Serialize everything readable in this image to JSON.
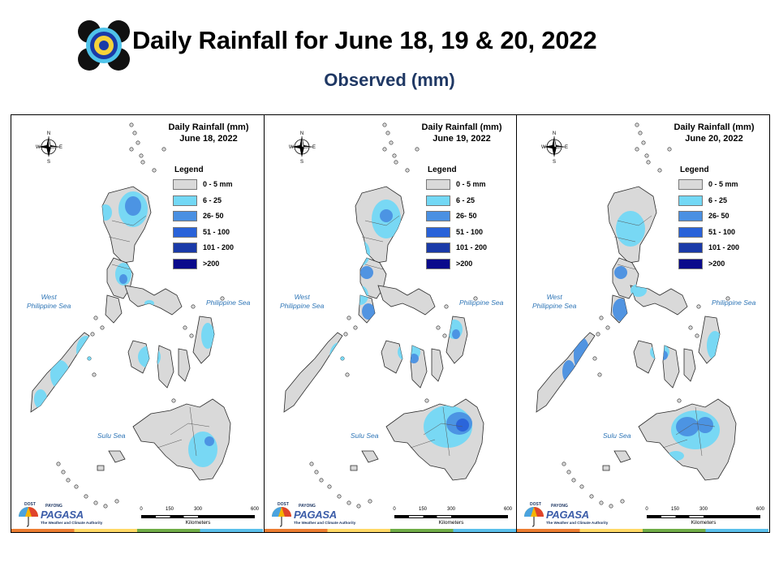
{
  "header": {
    "title": "Daily Rainfall for June 18, 19 & 20, 2022",
    "subtitle": "Observed (mm)",
    "logo_icon": "pagasa-seal-icon"
  },
  "map_title_prefix": "Daily Rainfall (mm)",
  "panels": [
    {
      "date": "June 18, 2022"
    },
    {
      "date": "June 19, 2022"
    },
    {
      "date": "June 20, 2022"
    }
  ],
  "legend": {
    "title": "Legend",
    "classes": [
      {
        "label": "0 - 5 mm",
        "color": "#d9d9d9"
      },
      {
        "label": "6 - 25",
        "color": "#73d8f5"
      },
      {
        "label": "26- 50",
        "color": "#4a90e2"
      },
      {
        "label": "51 - 100",
        "color": "#2962d9"
      },
      {
        "label": "101 - 200",
        "color": "#1a3aa8"
      },
      {
        "label": ">200",
        "color": "#0a0a8c"
      }
    ]
  },
  "seas": {
    "west_line1": "West",
    "west_line2": "Philippine Sea",
    "east": "Philippine Sea",
    "south": "Sulu Sea"
  },
  "compass": {
    "n": "N",
    "s": "S",
    "e": "E",
    "w": "W"
  },
  "scale": {
    "ticks": [
      "0",
      "150",
      "300",
      "600"
    ],
    "unit": "Kilometers"
  },
  "brand": {
    "dost": "DOST",
    "payong": "PAYONG",
    "name": "PAGASA",
    "tagline": "The Weather and Climate Authority"
  },
  "colors": {
    "land": "#d9d9d9",
    "subtitle": "#1f3864",
    "sea_label": "#2e75b6",
    "stripe": [
      "#ed7d31",
      "#ffd966",
      "#70ad47",
      "#5bc0eb"
    ]
  }
}
